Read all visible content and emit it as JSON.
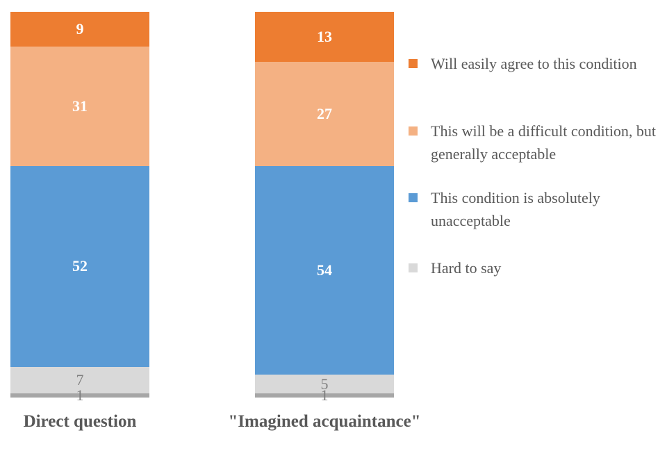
{
  "chart_data": {
    "type": "bar",
    "subtype": "stacked-column",
    "title": "",
    "xlabel": "",
    "ylabel": "",
    "ylim": [
      0,
      100
    ],
    "grid": false,
    "legend_position": "right",
    "categories": [
      "Direct question",
      "\"Imagined acquaintance\""
    ],
    "series": [
      {
        "name": "Will easily agree to this condition",
        "values": [
          9,
          13
        ],
        "color": "#ED7D31",
        "label_color": "#FFFFFF",
        "label_bold": true,
        "in_legend": true
      },
      {
        "name": "This will be a difficult condition, but generally acceptable",
        "values": [
          31,
          27
        ],
        "color": "#F4B183",
        "label_color": "#FFFFFF",
        "label_bold": true,
        "in_legend": true
      },
      {
        "name": "This condition is absolutely unacceptable",
        "values": [
          52,
          54
        ],
        "color": "#5B9BD5",
        "label_color": "#FFFFFF",
        "label_bold": true,
        "in_legend": true
      },
      {
        "name": "Hard to say",
        "values": [
          7,
          5
        ],
        "color": "#D9D9D9",
        "label_color": "#7F7F7F",
        "label_bold": false,
        "in_legend": true
      },
      {
        "name": "",
        "values": [
          1,
          1
        ],
        "color": "#A6A6A6",
        "label_color": "#7F7F7F",
        "label_bold": false,
        "in_legend": false
      }
    ],
    "colors": {
      "category_label": "#595959",
      "legend_text": "#595959",
      "background": "#FFFFFF"
    }
  }
}
